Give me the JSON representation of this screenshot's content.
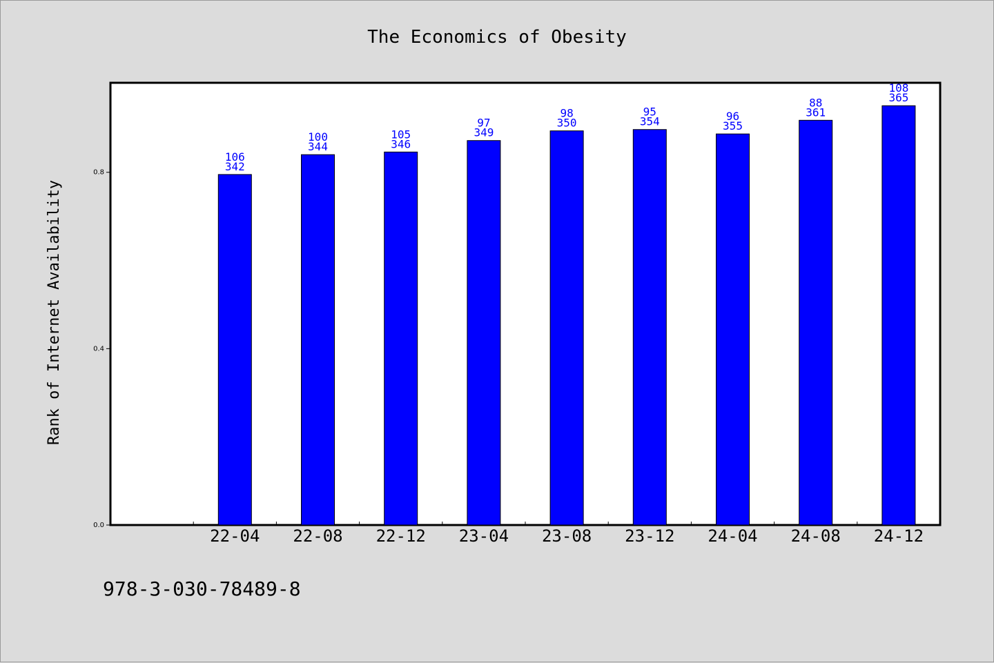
{
  "chart_data": {
    "type": "bar",
    "title": "The Economics of Obesity",
    "xlabel": "",
    "ylabel": "Rank of Internet Availability",
    "categories": [
      "22-04",
      "22-08",
      "22-12",
      "23-04",
      "23-08",
      "23-12",
      "24-04",
      "24-08",
      "24-12"
    ],
    "values": [
      0.795,
      0.84,
      0.846,
      0.872,
      0.894,
      0.897,
      0.887,
      0.918,
      0.951
    ],
    "bar_labels_top": [
      "106",
      "100",
      "105",
      "97",
      "98",
      "95",
      "96",
      "88",
      "108"
    ],
    "bar_labels_bottom": [
      "342",
      "344",
      "346",
      "349",
      "350",
      "354",
      "355",
      "361",
      "365"
    ],
    "yticks": [
      "0.0",
      "0.4",
      "0.8"
    ],
    "ytick_values": [
      0.0,
      0.4,
      0.8
    ],
    "ylim": [
      0,
      1.003
    ],
    "grid": false,
    "bar_color": "#0000ff",
    "label_color": "#0000ff"
  },
  "footer": {
    "isbn": "978-3-030-78489-8"
  }
}
